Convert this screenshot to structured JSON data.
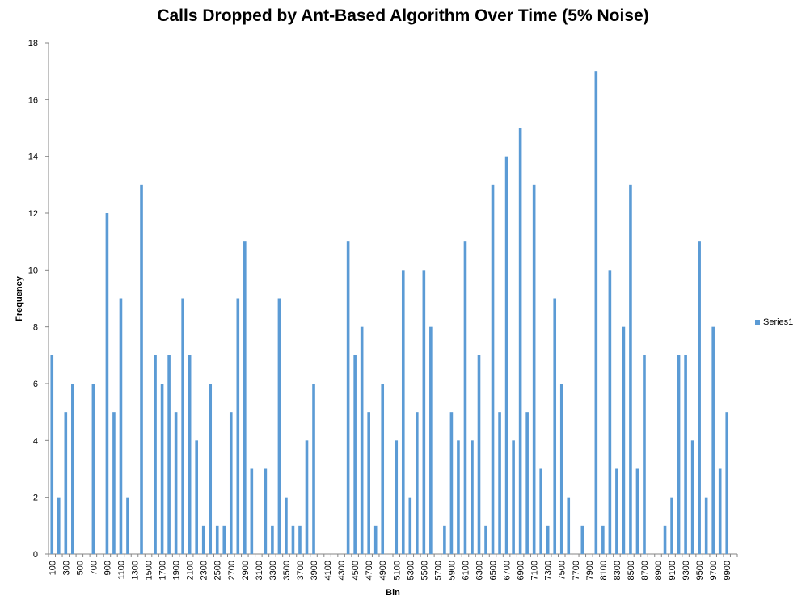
{
  "chart_data": {
    "type": "bar",
    "title": "Calls Dropped by Ant-Based Algorithm Over Time (5% Noise)",
    "xlabel": "Bin",
    "ylabel": "Frequency",
    "ylim": [
      0,
      18
    ],
    "yticks": [
      0,
      2,
      4,
      6,
      8,
      10,
      12,
      14,
      16,
      18
    ],
    "grid": false,
    "legend_position": "right",
    "bar_color": "#5B9BD5",
    "categories": [
      100,
      200,
      300,
      400,
      500,
      600,
      700,
      800,
      900,
      1000,
      1100,
      1200,
      1300,
      1400,
      1500,
      1600,
      1700,
      1800,
      1900,
      2000,
      2100,
      2200,
      2300,
      2400,
      2500,
      2600,
      2700,
      2800,
      2900,
      3000,
      3100,
      3200,
      3300,
      3400,
      3500,
      3600,
      3700,
      3800,
      3900,
      4000,
      4100,
      4200,
      4300,
      4400,
      4500,
      4600,
      4700,
      4800,
      4900,
      5000,
      5100,
      5200,
      5300,
      5400,
      5500,
      5600,
      5700,
      5800,
      5900,
      6000,
      6100,
      6200,
      6300,
      6400,
      6500,
      6600,
      6700,
      6800,
      6900,
      7000,
      7100,
      7200,
      7300,
      7400,
      7500,
      7600,
      7700,
      7800,
      7900,
      8000,
      8100,
      8200,
      8300,
      8400,
      8500,
      8600,
      8700,
      8800,
      8900,
      9000,
      9100,
      9200,
      9300,
      9400,
      9500,
      9600,
      9700,
      9800,
      9900,
      10000
    ],
    "xtick_labels": [
      "100",
      "300",
      "500",
      "700",
      "900",
      "1100",
      "1300",
      "1500",
      "1700",
      "1900",
      "2100",
      "2300",
      "2500",
      "2700",
      "2900",
      "3100",
      "3300",
      "3500",
      "3700",
      "3900",
      "4100",
      "4300",
      "4500",
      "4700",
      "4900",
      "5100",
      "5300",
      "5500",
      "5700",
      "5900",
      "6100",
      "6300",
      "6500",
      "6700",
      "6900",
      "7100",
      "7300",
      "7500",
      "7700",
      "7900",
      "8100",
      "8300",
      "8500",
      "8700",
      "8900",
      "9100",
      "9300",
      "9500",
      "9700",
      "9900"
    ],
    "series": [
      {
        "name": "Series1",
        "values": [
          7,
          2,
          5,
          6,
          0,
          0,
          6,
          0,
          12,
          5,
          9,
          2,
          0,
          13,
          0,
          7,
          6,
          7,
          5,
          9,
          7,
          4,
          1,
          6,
          1,
          1,
          5,
          9,
          11,
          3,
          0,
          3,
          1,
          9,
          2,
          1,
          1,
          4,
          6,
          0,
          0,
          0,
          0,
          11,
          7,
          8,
          5,
          1,
          6,
          0,
          4,
          10,
          2,
          5,
          10,
          8,
          0,
          1,
          5,
          4,
          11,
          4,
          7,
          1,
          13,
          5,
          14,
          4,
          15,
          5,
          13,
          3,
          1,
          9,
          6,
          2,
          0,
          1,
          0,
          17,
          1,
          10,
          3,
          8,
          13,
          3,
          7,
          0,
          0,
          1,
          2,
          7,
          7,
          4,
          11,
          2,
          8,
          3,
          5,
          0
        ]
      }
    ]
  }
}
